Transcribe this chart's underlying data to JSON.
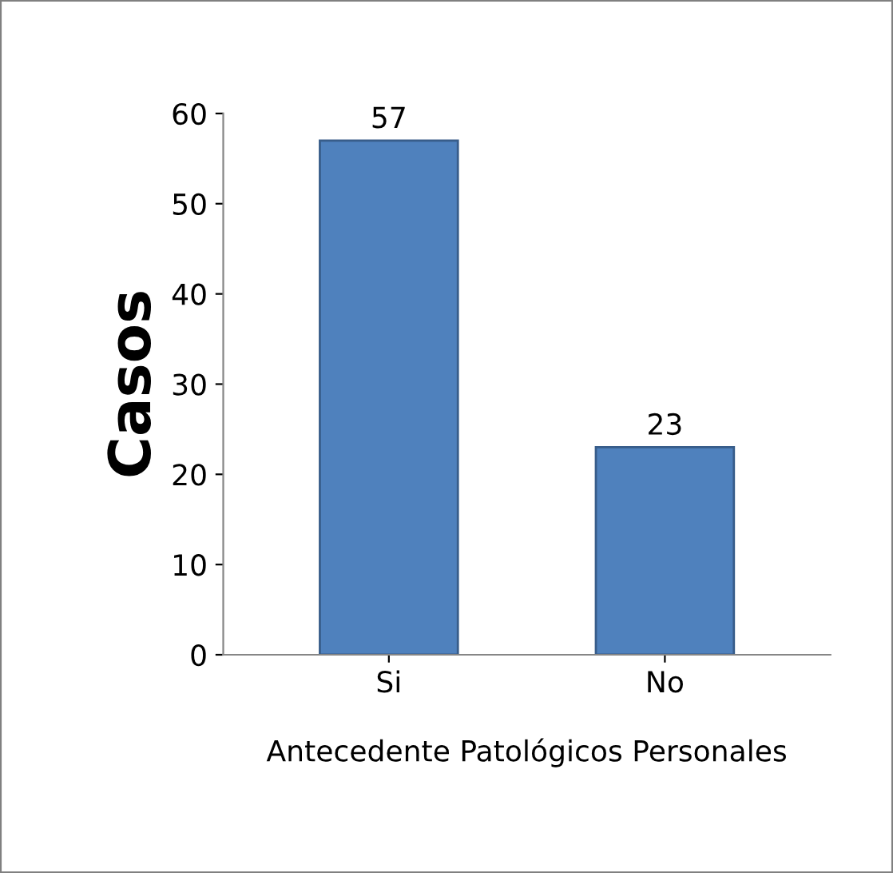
{
  "chart_data": {
    "type": "bar",
    "categories": [
      "Si",
      "No"
    ],
    "values": [
      57,
      23
    ],
    "color": "#4f81bd",
    "ylabel": "Casos",
    "xlabel": "Antecedente Patológicos Personales",
    "ylim": [
      0,
      60
    ],
    "yticks": [
      0,
      10,
      20,
      30,
      40,
      50,
      60
    ],
    "data_labels": true,
    "grid": false,
    "legend": false
  }
}
